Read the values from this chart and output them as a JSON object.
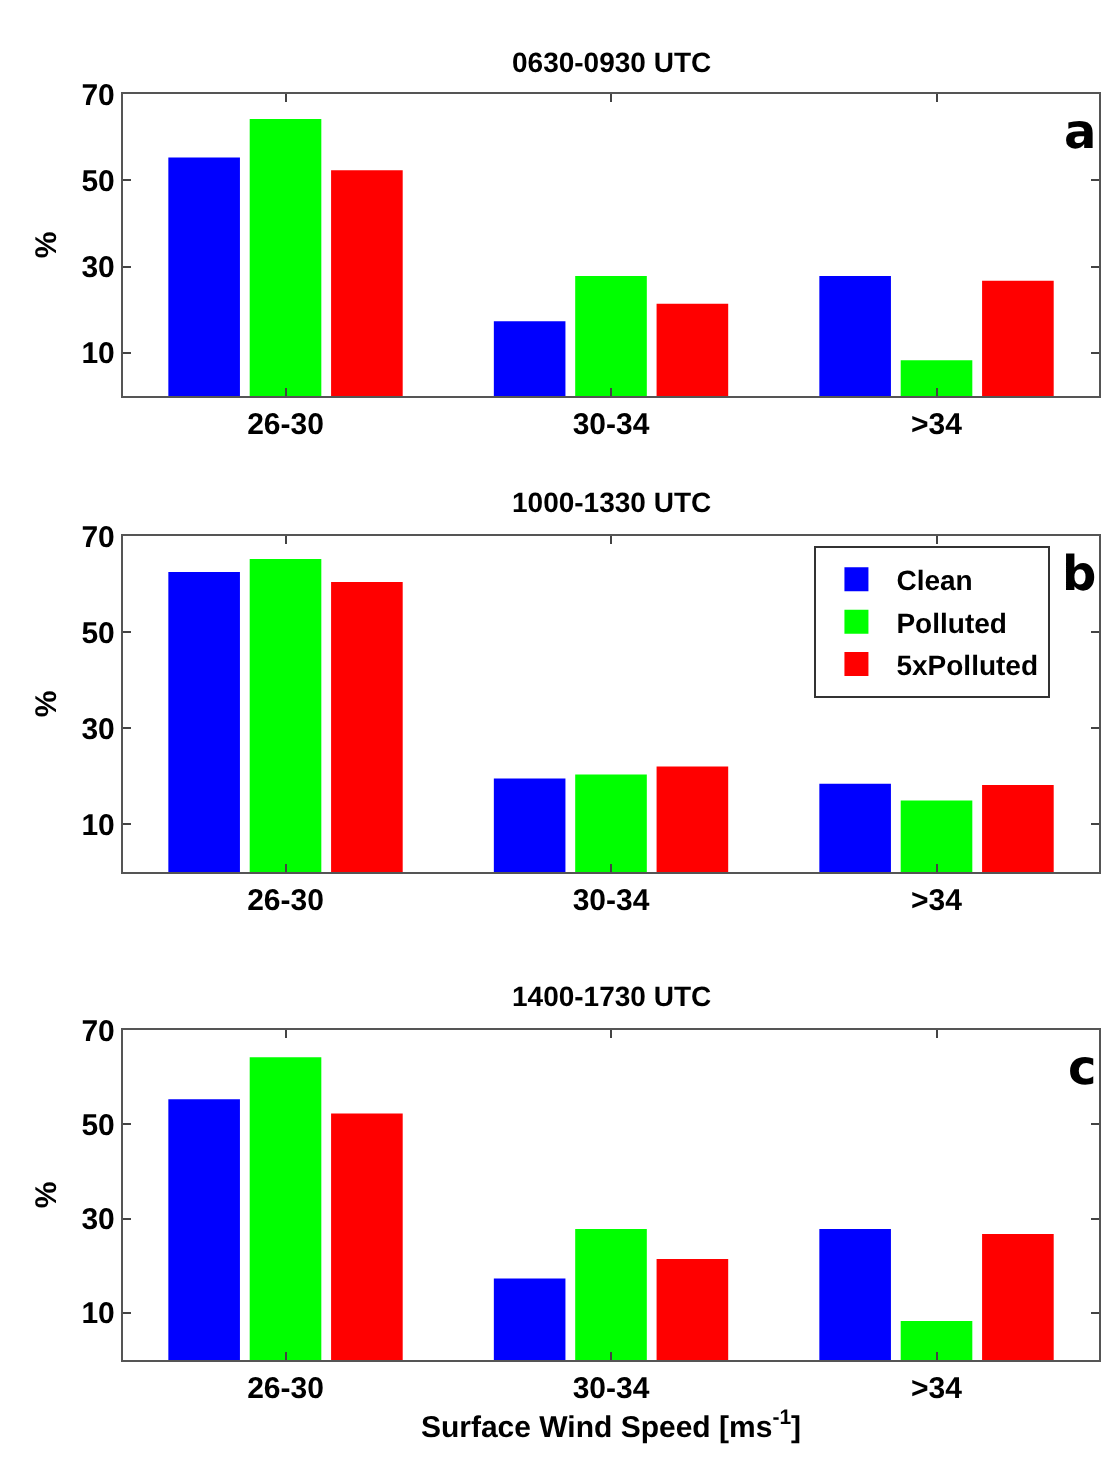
{
  "chart_data": [
    {
      "type": "bar",
      "title": "0630-0930 UTC",
      "ylabel": "%",
      "categories": [
        "26-30",
        "30-34",
        ">34"
      ],
      "series": [
        {
          "color": "#0000ff",
          "values": [
            55.3,
            17.3,
            27.8
          ]
        },
        {
          "color": "#00ff00",
          "values": [
            64.2,
            27.8,
            8.3
          ]
        },
        {
          "color": "#ff0000",
          "values": [
            52.3,
            21.4,
            26.7
          ]
        }
      ],
      "ylim": [
        0,
        70
      ],
      "yticks": [
        10,
        30,
        50,
        70
      ],
      "legend": false,
      "annotations": [
        "a"
      ]
    },
    {
      "type": "bar",
      "title": "1000-1330 UTC",
      "ylabel": "%",
      "categories": [
        "26-30",
        "30-34",
        ">34"
      ],
      "series": [
        {
          "name": "Clean",
          "color": "#0000ff",
          "values": [
            62.5,
            19.5,
            18.4
          ]
        },
        {
          "name": "Polluted",
          "color": "#00ff00",
          "values": [
            65.2,
            20.3,
            14.9
          ]
        },
        {
          "name": "5xPolluted",
          "color": "#ff0000",
          "values": [
            60.4,
            22.0,
            18.1
          ]
        }
      ],
      "ylim": [
        0,
        70
      ],
      "yticks": [
        10,
        30,
        50,
        70
      ],
      "legend": "top right",
      "annotations": [
        "b"
      ]
    },
    {
      "type": "bar",
      "title": "1400-1730 UTC",
      "ylabel": "%",
      "xlabel": "Surface Wind Speed [ms$^{-1}$]",
      "categories": [
        "26-30",
        "30-34",
        ">34"
      ],
      "series": [
        {
          "color": "#0000ff",
          "values": [
            55.3,
            17.3,
            27.8
          ]
        },
        {
          "color": "#00ff00",
          "values": [
            64.2,
            27.8,
            8.3
          ]
        },
        {
          "color": "#ff0000",
          "values": [
            52.3,
            21.4,
            26.7
          ]
        }
      ],
      "ylim": [
        0,
        70
      ],
      "yticks": [
        10,
        30,
        50,
        70
      ],
      "legend": false,
      "annotations": [
        "c"
      ]
    }
  ]
}
